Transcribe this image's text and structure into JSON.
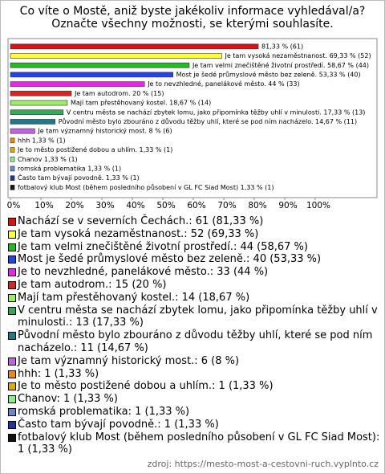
{
  "chart_data": {
    "type": "bar",
    "orientation": "horizontal",
    "title": "Co víte o Mostě, aniž byste jakékoliv informace vyhledával/a?\nOznačte všechny možnosti, se kterými souhlasíte.",
    "values": [
      81.33,
      69.33,
      58.67,
      53.33,
      44,
      20,
      18.67,
      17.33,
      14.67,
      8,
      1.33,
      1.33,
      1.33,
      1.33,
      1.33,
      1.33
    ],
    "value_labels": [
      "81,33 % (61)",
      "Je tam vysoká nezaměstnanost. 69,33 % (52)",
      "Je tam velmi znečištěné životní prostředí. 58,67 % (44)",
      "Most je šedé průmyslové město bez zeleně. 53,33 % (40)",
      "Je to nevzhledné, panelákové město. 44 % (33)",
      "Je tam autodrom. 20 % (15)",
      "Mají tam přestěhovaný kostel. 18,67 % (14)",
      "V centru města se nachází zbytek lomu, jako připomínka těžby uhlí v minulosti. 17,33 % (13)",
      "Původní město bylo zbouráno z důvodu těžby uhlí, které se pod ním nacházelo. 14,67 % (11)",
      "Je tam významný historický most. 8 % (6)",
      "hhh 1,33 % (1)",
      "Je to město postižené dobou a uhlím. 1,33 % (1)",
      "Chanov 1,33 % (1)",
      "romská problematika 1,33 % (1)",
      "Často tam bývají povodně. 1,33 % (1)",
      "fotbalový klub Most (během posledního působení v GL FC Siad Most) 1,33 % (1)"
    ],
    "legend_labels": [
      "Nachází se v severních Čechách.: 61 (81,33 %)",
      "Je tam vysoká nezaměstnanost.: 52 (69,33 %)",
      "Je tam velmi znečištěné životní prostředí.: 44 (58,67 %)",
      "Most je šedé průmyslové město bez zeleně.: 40 (53,33 %)",
      "Je to nevzhledné, panelákové město.: 33 (44 %)",
      "Je tam autodrom.: 15 (20 %)",
      "Mají tam přestěhovaný kostel.: 14 (18,67 %)",
      "V centru města se nachází zbytek lomu, jako připomínka těžby uhlí v minulosti.: 13 (17,33 %)",
      "Původní město bylo zbouráno z důvodu těžby uhlí, které se pod ním nacházelo.: 11 (14,67 %)",
      "Je tam významný historický most.: 6 (8 %)",
      "hhh: 1 (1,33 %)",
      "Je to město postižené dobou a uhlím.: 1 (1,33 %)",
      "Chanov: 1 (1,33 %)",
      "romská problematika: 1 (1,33 %)",
      "Často tam bývají povodně.: 1 (1,33 %)",
      "fotbalový klub Most (během posledního působení v GL FC Siad Most): 1 (1,33 %)"
    ],
    "colors": [
      "#dd1111",
      "#ffff33",
      "#22bb22",
      "#2244ee",
      "#ee22ee",
      "#dd2222",
      "#99ee66",
      "#33aa55",
      "#227788",
      "#bb66dd",
      "#ee8811",
      "#ddaa00",
      "#88ee88",
      "#6688cc",
      "#223399",
      "#111111"
    ],
    "xlim": [
      0,
      100
    ],
    "xticks": [
      {
        "value": 0,
        "label": "0%"
      },
      {
        "value": 10,
        "label": "10%"
      },
      {
        "value": 20,
        "label": "20%"
      },
      {
        "value": 30,
        "label": "30%"
      },
      {
        "value": 40,
        "label": "40%"
      },
      {
        "value": 50,
        "label": "50%"
      },
      {
        "value": 60,
        "label": "60%"
      },
      {
        "value": 70,
        "label": "70%"
      },
      {
        "value": 80,
        "label": "80%"
      },
      {
        "value": 90,
        "label": "90%"
      },
      {
        "value": 100,
        "label": "100%"
      }
    ],
    "source": "zdroj: https://mesto-most-a-cestovni-ruch.vyplnto.cz"
  }
}
